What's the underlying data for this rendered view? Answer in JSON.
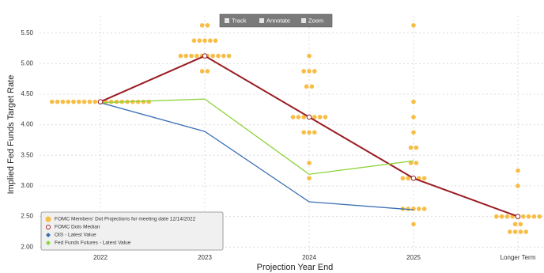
{
  "toolbar": [
    "Track",
    "Annotate",
    "Zoom"
  ],
  "chart_data": {
    "type": "dot-plot",
    "y_label": "Implied Fed Funds Target Rate",
    "x_label": "Projection Year End",
    "categories": [
      "2022",
      "2023",
      "2024",
      "2025",
      "Longer Term"
    ],
    "ylim": [
      1.9,
      5.78
    ],
    "yticks": [
      {
        "value": 2,
        "label": "2.00"
      },
      {
        "value": 2.5,
        "label": "2.50"
      },
      {
        "value": 3,
        "label": "3.00"
      },
      {
        "value": 3.5,
        "label": "3.50"
      },
      {
        "value": 4,
        "label": "4.00"
      },
      {
        "value": 4.5,
        "label": "4.50"
      },
      {
        "value": 5,
        "label": "5.00"
      },
      {
        "value": 5.5,
        "label": "5.50"
      }
    ],
    "grid": true,
    "legend": "bottom-left",
    "dots": {
      "name": "FOMC Members' Dot Projections for meeting date 12/14/2022",
      "color": "#f7bd45",
      "values": [
        [
          4.375,
          4.375,
          4.375,
          4.375,
          4.375,
          4.375,
          4.375,
          4.375,
          4.375,
          4.375,
          4.375,
          4.375,
          4.375,
          4.375,
          4.375,
          4.375,
          4.375,
          4.375,
          4.375
        ],
        [
          5.625,
          5.625,
          5.375,
          5.375,
          5.375,
          5.375,
          5.375,
          5.125,
          5.125,
          5.125,
          5.125,
          5.125,
          5.125,
          5.125,
          5.125,
          5.125,
          5.125,
          4.875,
          4.875
        ],
        [
          5.125,
          4.875,
          4.875,
          4.875,
          4.625,
          4.625,
          4.125,
          4.125,
          4.125,
          4.125,
          4.125,
          4.125,
          4.125,
          3.875,
          3.875,
          3.875,
          3.375,
          3.125
        ],
        [
          5.625,
          4.375,
          4.125,
          3.875,
          3.625,
          3.625,
          3.375,
          3.375,
          3.125,
          3.125,
          3.125,
          3.125,
          3.125,
          2.625,
          2.625,
          2.625,
          2.625,
          2.625,
          2.375
        ],
        [
          3.25,
          3.0,
          2.5,
          2.5,
          2.5,
          2.5,
          2.5,
          2.5,
          2.5,
          2.5,
          2.5,
          2.375,
          2.375,
          2.25,
          2.25,
          2.25,
          2.25
        ]
      ]
    },
    "series": [
      {
        "name": "FOMC Dots Median",
        "color": "#9b1d24",
        "values": [
          4.375,
          5.125,
          4.125,
          3.125,
          2.5
        ]
      },
      {
        "name": "OIS - Latest Value",
        "color": "#3b6fb3",
        "values": [
          4.36,
          3.89,
          2.74,
          2.61,
          null
        ]
      },
      {
        "name": "Fed Funds Futures - Latest Value",
        "color": "#8dd33a",
        "values": [
          4.36,
          4.42,
          3.19,
          3.41,
          null
        ]
      }
    ]
  }
}
